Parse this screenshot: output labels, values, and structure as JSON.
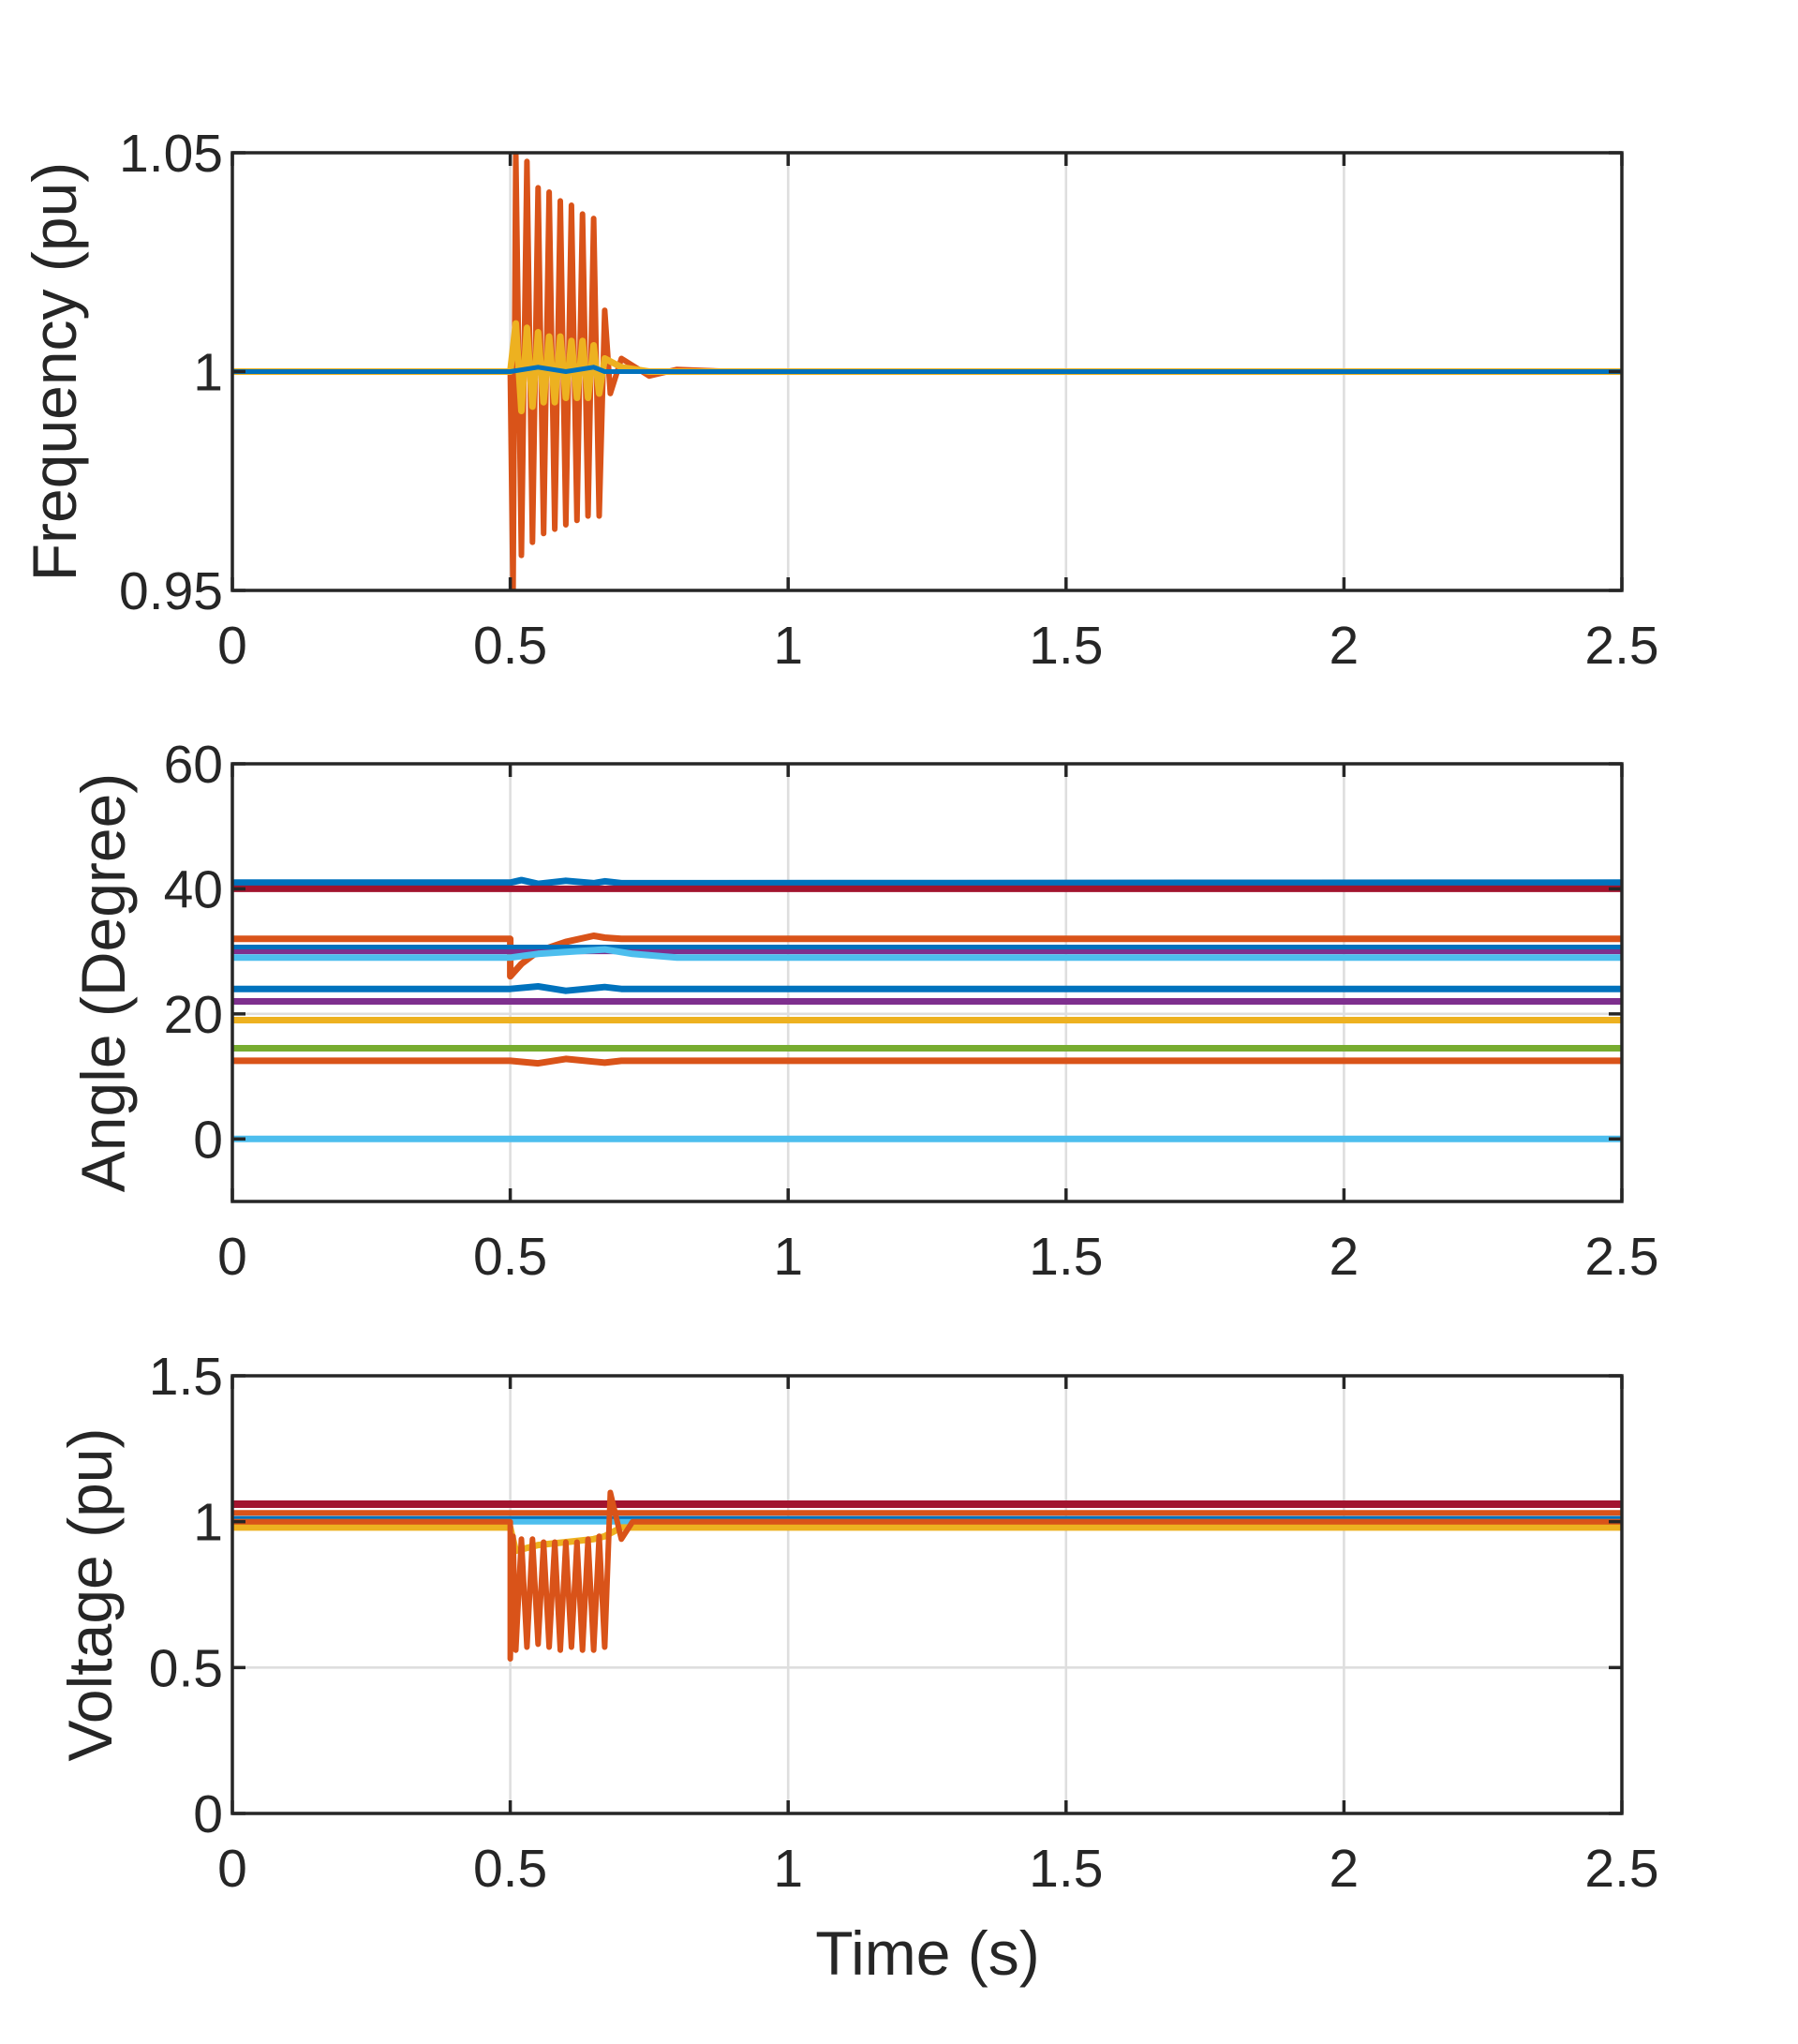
{
  "figure": {
    "xlabel": "Time (s)"
  },
  "chart_data": [
    {
      "type": "line",
      "ylabel": "Frequency (pu)",
      "xlim": [
        0,
        2.5
      ],
      "ylim": [
        0.95,
        1.05
      ],
      "xticks": [
        "0",
        "0.5",
        "1",
        "1.5",
        "2",
        "2.5"
      ],
      "yticks": [
        "0.95",
        "1",
        "1.05"
      ],
      "xtick_values": [
        0,
        0.5,
        1,
        1.5,
        2,
        2.5
      ],
      "ytick_values": [
        0.95,
        1,
        1.05
      ],
      "grid": true,
      "series": [
        {
          "color": "#D95319",
          "width": 6,
          "x": [
            0,
            0.49,
            0.5,
            0.505,
            0.51,
            0.52,
            0.53,
            0.54,
            0.55,
            0.56,
            0.57,
            0.58,
            0.59,
            0.6,
            0.61,
            0.62,
            0.63,
            0.64,
            0.65,
            0.66,
            0.67,
            0.68,
            0.7,
            0.75,
            0.8,
            0.9,
            1.0,
            2.5
          ],
          "y": [
            1.0,
            1.0,
            1.0,
            0.949,
            1.05,
            0.958,
            1.048,
            0.961,
            1.042,
            0.963,
            1.041,
            0.964,
            1.039,
            0.965,
            1.038,
            0.966,
            1.036,
            0.967,
            1.035,
            0.967,
            1.014,
            0.995,
            1.003,
            0.999,
            1.0005,
            1.0,
            1.0,
            1.0
          ]
        },
        {
          "color": "#EDB120",
          "width": 7,
          "x": [
            0,
            0.5,
            0.51,
            0.52,
            0.53,
            0.54,
            0.55,
            0.56,
            0.57,
            0.58,
            0.59,
            0.6,
            0.61,
            0.62,
            0.63,
            0.64,
            0.65,
            0.66,
            0.67,
            0.7,
            0.75,
            2.5
          ],
          "y": [
            1.0,
            1.0,
            1.011,
            0.991,
            1.01,
            0.992,
            1.009,
            0.993,
            1.008,
            0.993,
            1.008,
            0.994,
            1.007,
            0.994,
            1.007,
            0.994,
            1.006,
            0.995,
            1.003,
            1.001,
            1.0,
            1.0
          ]
        },
        {
          "color": "#0072BD",
          "width": 5,
          "x": [
            0,
            0.5,
            0.55,
            0.6,
            0.65,
            0.67,
            0.7,
            2.5
          ],
          "y": [
            1.0,
            1.0,
            1.001,
            1.0,
            1.001,
            1.0,
            1.0,
            1.0
          ]
        }
      ]
    },
    {
      "type": "line",
      "ylabel": "Angle (Degree)",
      "xlim": [
        0,
        2.5
      ],
      "ylim": [
        -10,
        60
      ],
      "xticks": [
        "0",
        "0.5",
        "1",
        "1.5",
        "2",
        "2.5"
      ],
      "yticks": [
        "0",
        "20",
        "40",
        "60"
      ],
      "xtick_values": [
        0,
        0.5,
        1,
        1.5,
        2,
        2.5
      ],
      "ytick_values": [
        0,
        20,
        40,
        60
      ],
      "grid": true,
      "series": [
        {
          "color": "#0072BD",
          "width": 7,
          "x": [
            0,
            0.5,
            0.52,
            0.55,
            0.6,
            0.65,
            0.67,
            0.7,
            2.5
          ],
          "y": [
            41,
            41,
            41.4,
            40.8,
            41.3,
            40.9,
            41.2,
            40.9,
            41
          ]
        },
        {
          "color": "#A2142F",
          "width": 7,
          "x": [
            0,
            2.5
          ],
          "y": [
            40,
            40
          ]
        },
        {
          "color": "#D95319",
          "width": 7,
          "x": [
            0,
            0.5,
            0.5,
            0.52,
            0.55,
            0.6,
            0.65,
            0.67,
            0.7,
            2.5
          ],
          "y": [
            32,
            32,
            26,
            28,
            30,
            31.5,
            32.5,
            32.2,
            32,
            32
          ]
        },
        {
          "color": "#7E2F8E",
          "width": 6,
          "x": [
            0,
            2.5
          ],
          "y": [
            30,
            30
          ]
        },
        {
          "color": "#0072BD",
          "width": 5,
          "x": [
            0,
            2.5
          ],
          "y": [
            30.7,
            30.7
          ]
        },
        {
          "color": "#4DBEEE",
          "width": 7,
          "x": [
            0,
            0.5,
            0.55,
            0.6,
            0.67,
            0.72,
            0.8,
            2.5
          ],
          "y": [
            29,
            29,
            29.6,
            29.9,
            30.3,
            29.6,
            29,
            29
          ]
        },
        {
          "color": "#0072BD",
          "width": 7,
          "x": [
            0,
            0.5,
            0.55,
            0.6,
            0.67,
            0.7,
            2.5
          ],
          "y": [
            24,
            24,
            24.4,
            23.7,
            24.3,
            24,
            24
          ]
        },
        {
          "color": "#7E2F8E",
          "width": 7,
          "x": [
            0,
            2.5
          ],
          "y": [
            22,
            22
          ]
        },
        {
          "color": "#EDB120",
          "width": 7,
          "x": [
            0,
            2.5
          ],
          "y": [
            19,
            19
          ]
        },
        {
          "color": "#77AC30",
          "width": 7,
          "x": [
            0,
            2.5
          ],
          "y": [
            14.5,
            14.5
          ]
        },
        {
          "color": "#D95319",
          "width": 7,
          "x": [
            0,
            0.5,
            0.55,
            0.6,
            0.67,
            0.7,
            2.5
          ],
          "y": [
            12.5,
            12.5,
            12.1,
            12.8,
            12.2,
            12.5,
            12.5
          ]
        },
        {
          "color": "#4DBEEE",
          "width": 7,
          "x": [
            0,
            2.5
          ],
          "y": [
            0,
            0
          ]
        }
      ]
    },
    {
      "type": "line",
      "ylabel": "Voltage (pu)",
      "xlim": [
        0,
        2.5
      ],
      "ylim": [
        0,
        1.5
      ],
      "xticks": [
        "0",
        "0.5",
        "1",
        "1.5",
        "2",
        "2.5"
      ],
      "yticks": [
        "0",
        "0.5",
        "1",
        "1.5"
      ],
      "xtick_values": [
        0,
        0.5,
        1,
        1.5,
        2,
        2.5
      ],
      "ytick_values": [
        0,
        0.5,
        1,
        1.5
      ],
      "grid": true,
      "series": [
        {
          "color": "#A2142F",
          "width": 8,
          "x": [
            0,
            2.5
          ],
          "y": [
            1.06,
            1.06
          ]
        },
        {
          "color": "#D95319",
          "width": 6,
          "x": [
            0,
            2.5
          ],
          "y": [
            1.03,
            1.03
          ]
        },
        {
          "color": "#0072BD",
          "width": 6,
          "x": [
            0,
            2.5
          ],
          "y": [
            1.01,
            1.01
          ]
        },
        {
          "color": "#4DBEEE",
          "width": 6,
          "x": [
            0,
            2.5
          ],
          "y": [
            1.0,
            1.0
          ]
        },
        {
          "color": "#EDB120",
          "width": 7,
          "x": [
            0,
            0.5,
            0.51,
            0.55,
            0.6,
            0.65,
            0.67,
            0.7,
            2.5
          ],
          "y": [
            0.98,
            0.98,
            0.9,
            0.92,
            0.93,
            0.94,
            0.95,
            0.98,
            0.98
          ]
        },
        {
          "color": "#D95319",
          "width": 6,
          "x": [
            0,
            0.5,
            0.5,
            0.505,
            0.51,
            0.52,
            0.53,
            0.54,
            0.55,
            0.56,
            0.57,
            0.58,
            0.59,
            0.6,
            0.61,
            0.62,
            0.63,
            0.64,
            0.65,
            0.66,
            0.67,
            0.68,
            0.7,
            0.72,
            2.5
          ],
          "y": [
            1.0,
            1.0,
            0.53,
            0.95,
            0.56,
            0.94,
            0.57,
            0.94,
            0.58,
            0.93,
            0.57,
            0.93,
            0.56,
            0.93,
            0.57,
            0.93,
            0.56,
            0.94,
            0.56,
            0.95,
            0.57,
            1.1,
            0.94,
            1.0,
            1.0
          ]
        }
      ]
    }
  ]
}
